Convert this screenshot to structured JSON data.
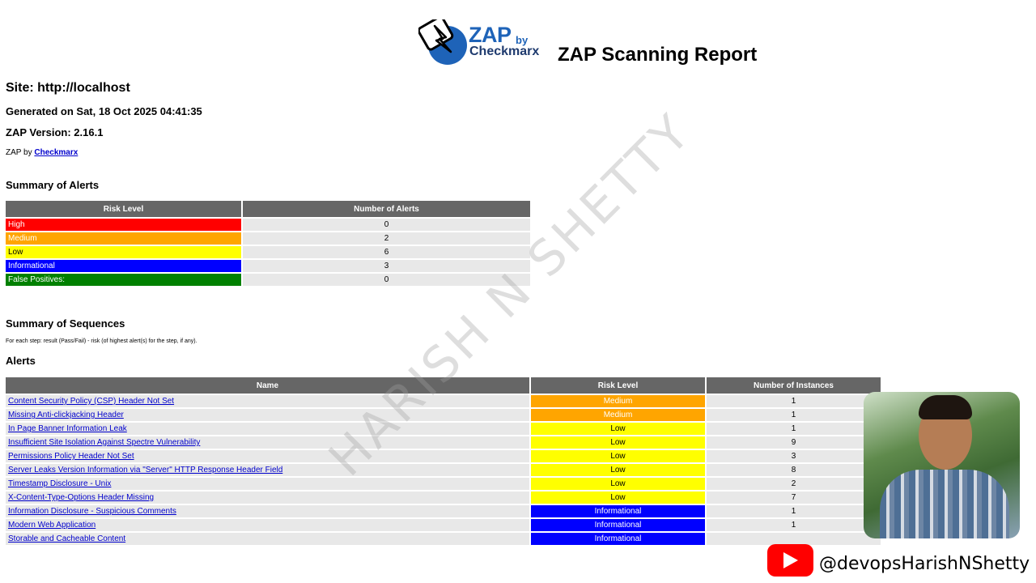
{
  "header": {
    "logo_zap": "ZAP",
    "logo_by": "by",
    "logo_checkmarx": "Checkmarx",
    "title": "ZAP Scanning Report"
  },
  "site": "Site: http://localhost",
  "generated": "Generated on Sat, 18 Oct 2025 04:41:35",
  "version": "ZAP Version: 2.16.1",
  "zap_by_prefix": "ZAP by",
  "zap_by_link": "Checkmarx",
  "summary": {
    "heading": "Summary of Alerts",
    "col_risk": "Risk Level",
    "col_count": "Number of Alerts",
    "rows": [
      {
        "risk": "High",
        "count": "0"
      },
      {
        "risk": "Medium",
        "count": "2"
      },
      {
        "risk": "Low",
        "count": "6"
      },
      {
        "risk": "Informational",
        "count": "3"
      },
      {
        "risk": "False Positives:",
        "count": "0"
      }
    ]
  },
  "sequences": {
    "heading": "Summary of Sequences",
    "note": "For each step: result (Pass/Fail) - risk (of highest alert(s) for the step, if any)."
  },
  "alerts": {
    "heading": "Alerts",
    "col_name": "Name",
    "col_risk": "Risk Level",
    "col_instances": "Number of Instances",
    "rows": [
      {
        "name": "Content Security Policy (CSP) Header Not Set",
        "risk": "Medium",
        "instances": "1"
      },
      {
        "name": "Missing Anti-clickjacking Header",
        "risk": "Medium",
        "instances": "1"
      },
      {
        "name": "In Page Banner Information Leak",
        "risk": "Low",
        "instances": "1"
      },
      {
        "name": "Insufficient Site Isolation Against Spectre Vulnerability",
        "risk": "Low",
        "instances": "9"
      },
      {
        "name": "Permissions Policy Header Not Set",
        "risk": "Low",
        "instances": "3"
      },
      {
        "name": "Server Leaks Version Information via \"Server\" HTTP Response Header Field",
        "risk": "Low",
        "instances": "8"
      },
      {
        "name": "Timestamp Disclosure - Unix",
        "risk": "Low",
        "instances": "2"
      },
      {
        "name": "X-Content-Type-Options Header Missing",
        "risk": "Low",
        "instances": "7"
      },
      {
        "name": "Information Disclosure - Suspicious Comments",
        "risk": "Informational",
        "instances": "1"
      },
      {
        "name": "Modern Web Application",
        "risk": "Informational",
        "instances": "1"
      },
      {
        "name": "Storable and Cacheable Content",
        "risk": "Informational",
        "instances": ""
      }
    ]
  },
  "watermark": "HARISH N SHETTY",
  "youtube_handle": "@devopsHarishNShetty",
  "colors": {
    "high": "#ff0000",
    "medium": "#ffa500",
    "low": "#ffff00",
    "informational": "#0000ff",
    "false_positives": "#008000",
    "table_header": "#666666",
    "link": "#0000cc"
  }
}
